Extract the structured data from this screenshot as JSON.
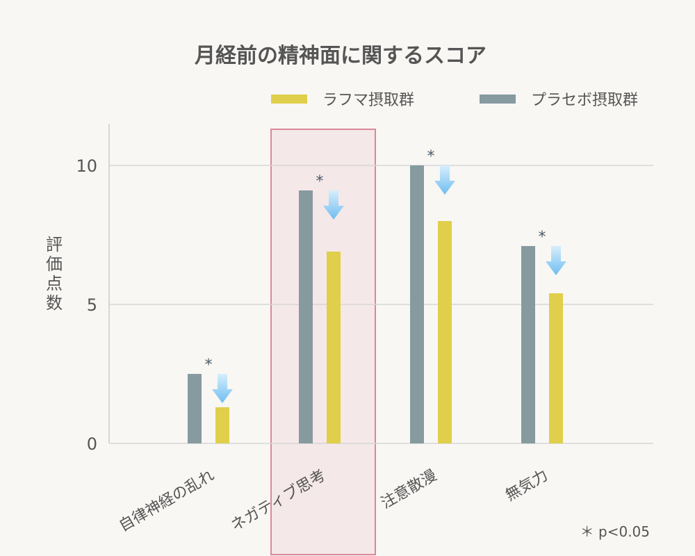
{
  "chart_data": {
    "type": "bar",
    "title": "月経前の精神面に関するスコア",
    "ylabel": "評価点数",
    "xlabel": "",
    "ylim": [
      0,
      11.5
    ],
    "yticks": [
      0,
      5,
      10
    ],
    "grid": true,
    "legend_position": "top-right",
    "categories": [
      "自律神経の乱れ",
      "ネガティブ思考",
      "注意散漫",
      "無気力"
    ],
    "series": [
      {
        "name": "プラセボ摂取群",
        "color": "#869a9f",
        "values": [
          2.5,
          9.1,
          10.0,
          7.1
        ]
      },
      {
        "name": "ラフマ摂取群",
        "color": "#e0cf4a",
        "values": [
          1.3,
          6.9,
          8.0,
          5.4
        ]
      }
    ],
    "legend_order": [
      1,
      0
    ],
    "significance_marker": "*",
    "significant": [
      true,
      true,
      true,
      true
    ],
    "highlight_category": 1,
    "highlight_color": "#d98898",
    "arrow_color": "#7fc6f2",
    "footnote": "＊ p<0.05"
  }
}
